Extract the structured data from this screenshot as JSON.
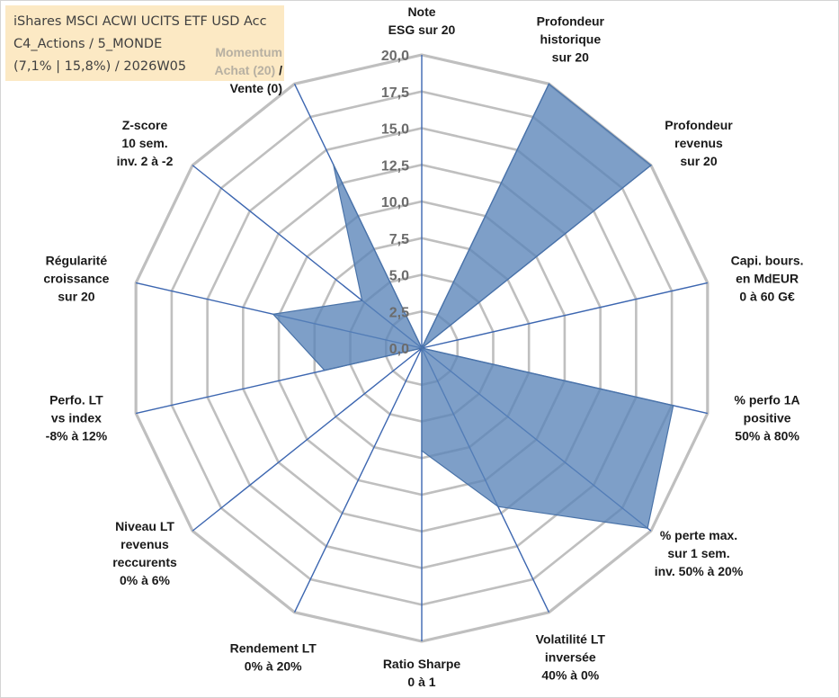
{
  "title": {
    "line1": "iShares MSCI ACWI UCITS ETF USD Acc",
    "line2": "C4_Actions / 5_MONDE",
    "line3": "(7,1% | 15,8%) / 2026W05"
  },
  "colors": {
    "fill": "#5a84b8",
    "fill_opacity": 0.78,
    "outline": "#4a73a8",
    "spoke": "#3c66b0",
    "grid": "#bfbfbf",
    "title_background": "#fce9c4"
  },
  "chart_data": {
    "type": "radar",
    "rmin": 0,
    "rmax": 20,
    "grid": true,
    "tick_labels": [
      "0,0",
      "2,5",
      "5,0",
      "7,5",
      "10,0",
      "12,5",
      "15,0",
      "17,5",
      "20,0"
    ],
    "axes": [
      {
        "lines": [
          "Note",
          "ESG sur 20"
        ],
        "value": 0
      },
      {
        "lines": [
          "Profondeur",
          "historique",
          "sur 20"
        ],
        "value": 20
      },
      {
        "lines": [
          "Profondeur",
          "revenus",
          "sur 20"
        ],
        "value": 20
      },
      {
        "lines": [
          "Capi. bours.",
          "en MdEUR",
          "0 à 60 G€"
        ],
        "value": 0
      },
      {
        "lines": [
          "% perfo 1A",
          "positive",
          "50% à 80%"
        ],
        "value": 17.6
      },
      {
        "lines": [
          "% perte max.",
          "sur 1 sem.",
          "inv. 50% à 20%"
        ],
        "value": 19.7
      },
      {
        "lines": [
          "Volatilité LT",
          "inversée",
          "40% à 0%"
        ],
        "value": 12
      },
      {
        "lines": [
          "Ratio Sharpe",
          "0 à 1"
        ],
        "value": 7
      },
      {
        "lines": [
          "Rendement LT",
          "0% à 20%"
        ],
        "value": 0
      },
      {
        "lines": [
          "Niveau LT",
          "revenus",
          "reccurents",
          "0% à 6%"
        ],
        "value": 0
      },
      {
        "lines": [
          "Perfo. LT",
          "vs index",
          "-8% à 12%"
        ],
        "value": 6.8
      },
      {
        "lines": [
          "Régularité",
          "croissance",
          "sur 20"
        ],
        "value": 10.4
      },
      {
        "lines": [
          "Z-score",
          "10 sem.",
          "inv. 2 à -2"
        ],
        "value": 5.2
      },
      {
        "lines": [
          "Momentum",
          "Achat (20) /",
          "Vente (0)"
        ],
        "value": 13.9
      }
    ]
  }
}
